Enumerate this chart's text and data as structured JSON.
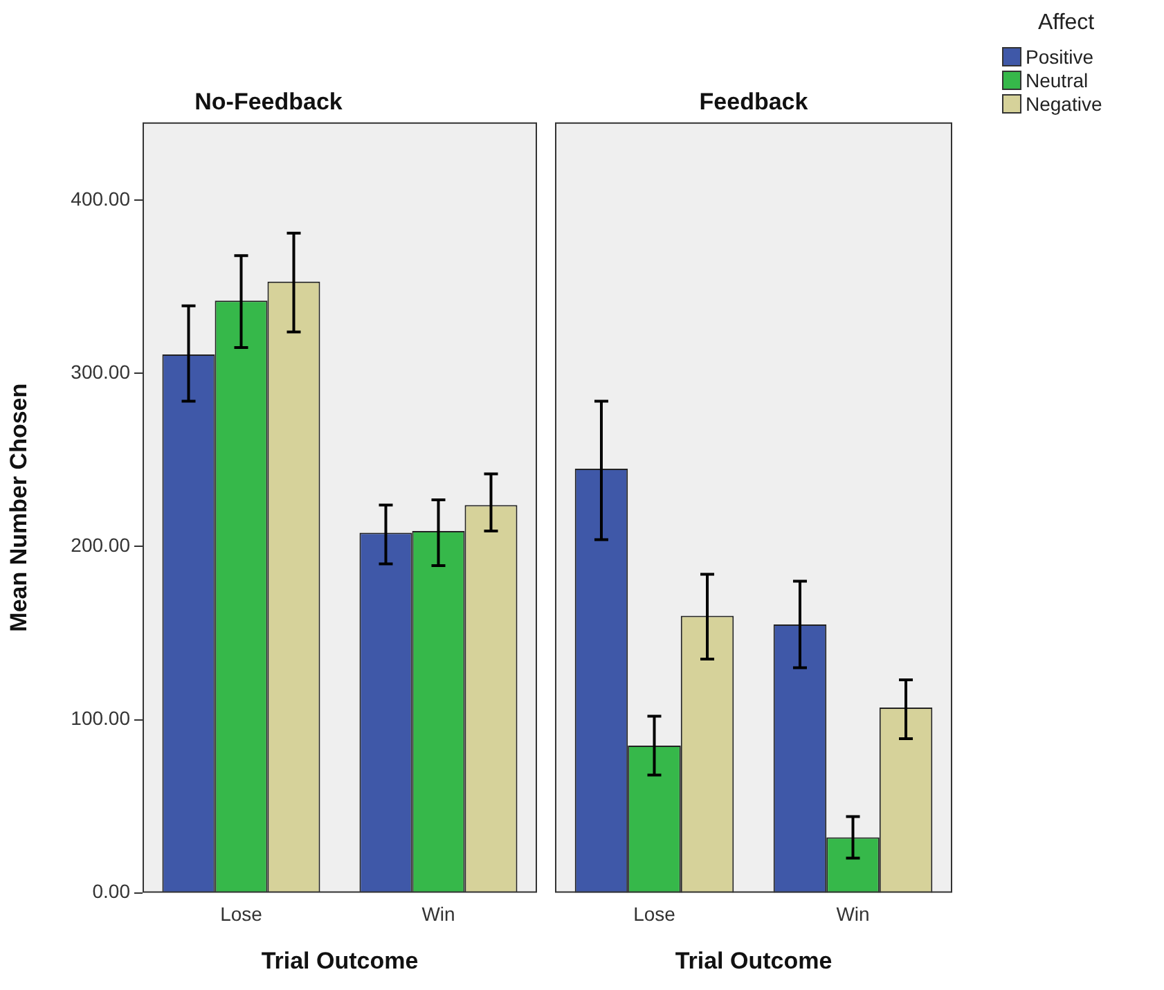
{
  "chart_data": [
    {
      "type": "bar",
      "title": "No-Feedback",
      "xlabel": "Trial Outcome",
      "ylabel": "Mean Number Chosen",
      "categories": [
        "Lose",
        "Win"
      ],
      "ylim": [
        0,
        445
      ],
      "yticks": [
        {
          "value": 0,
          "label": "0.00"
        },
        {
          "value": 100,
          "label": "100.00"
        },
        {
          "value": 200,
          "label": "200.00"
        },
        {
          "value": 300,
          "label": "300.00"
        },
        {
          "value": 400,
          "label": "400.00"
        }
      ],
      "grid": false,
      "legend": "top right",
      "legend_title": "Affect",
      "series": [
        {
          "name": "Positive",
          "color": "#3f58a8",
          "values": [
            311,
            208
          ],
          "errors": [
            [
              284,
              339
            ],
            [
              190,
              224
            ]
          ]
        },
        {
          "name": "Neutral",
          "color": "#36b84a",
          "values": [
            342,
            209
          ],
          "errors": [
            [
              315,
              368
            ],
            [
              189,
              227
            ]
          ]
        },
        {
          "name": "Negative",
          "color": "#d6d29a",
          "values": [
            353,
            224
          ],
          "errors": [
            [
              324,
              381
            ],
            [
              209,
              242
            ]
          ]
        }
      ]
    },
    {
      "type": "bar",
      "title": "Feedback",
      "xlabel": "Trial Outcome",
      "categories": [
        "Lose",
        "Win"
      ],
      "ylim": [
        0,
        445
      ],
      "tick_labels": "x",
      "grid": false,
      "series": [
        {
          "color": "#3f58a8",
          "values": [
            245,
            155
          ],
          "errors": [
            [
              204,
              284
            ],
            [
              130,
              180
            ]
          ]
        },
        {
          "color": "#36b84a",
          "values": [
            85,
            32
          ],
          "errors": [
            [
              68,
              102
            ],
            [
              20,
              44
            ]
          ]
        },
        {
          "color": "#d6d29a",
          "values": [
            160,
            107
          ],
          "errors": [
            [
              135,
              184
            ],
            [
              89,
              123
            ]
          ]
        }
      ]
    }
  ]
}
